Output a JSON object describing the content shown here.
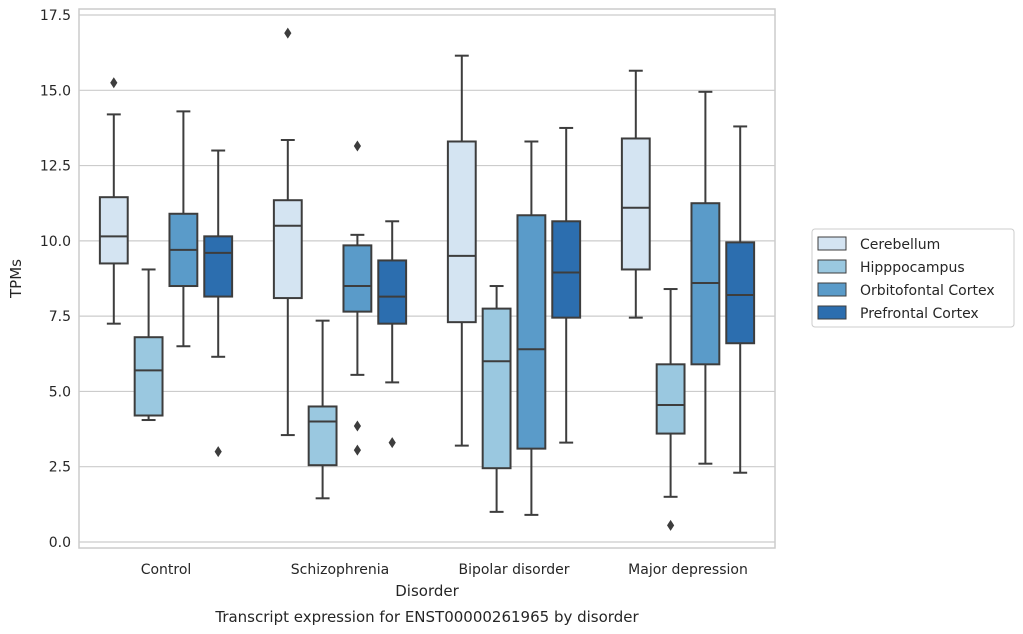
{
  "chart_data": {
    "type": "box",
    "title": "",
    "caption": "Transcript expression for ENST00000261965 by disorder",
    "xlabel": "Disorder",
    "ylabel": "TPMs",
    "ylim": [
      -0.2,
      17.7
    ],
    "yticks": [
      "0.0",
      "2.5",
      "5.0",
      "7.5",
      "10.0",
      "12.5",
      "15.0",
      "17.5"
    ],
    "grid": "horizontal",
    "legend_position": "right",
    "categories": [
      "Control",
      "Schizophrenia",
      "Bipolar disorder",
      "Major depression"
    ],
    "series": [
      {
        "name": "Cerebellum",
        "color": "#d4e4f2",
        "boxes": [
          {
            "whisker_low": 7.25,
            "q1": 9.25,
            "median": 10.15,
            "q3": 11.45,
            "whisker_high": 14.2,
            "outliers": [
              15.25
            ]
          },
          {
            "whisker_low": 3.55,
            "q1": 8.1,
            "median": 10.5,
            "q3": 11.35,
            "whisker_high": 13.35,
            "outliers": [
              16.9
            ]
          },
          {
            "whisker_low": 3.2,
            "q1": 7.3,
            "median": 9.5,
            "q3": 13.3,
            "whisker_high": 16.15,
            "outliers": []
          },
          {
            "whisker_low": 7.45,
            "q1": 9.05,
            "median": 11.1,
            "q3": 13.4,
            "whisker_high": 15.65,
            "outliers": []
          }
        ]
      },
      {
        "name": "Hipppocampus",
        "color": "#9ac8e0",
        "boxes": [
          {
            "whisker_low": 4.05,
            "q1": 4.2,
            "median": 5.7,
            "q3": 6.8,
            "whisker_high": 9.05,
            "outliers": []
          },
          {
            "whisker_low": 1.45,
            "q1": 2.55,
            "median": 4.0,
            "q3": 4.5,
            "whisker_high": 7.35,
            "outliers": []
          },
          {
            "whisker_low": 1.0,
            "q1": 2.45,
            "median": 6.0,
            "q3": 7.75,
            "whisker_high": 8.5,
            "outliers": []
          },
          {
            "whisker_low": 1.5,
            "q1": 3.6,
            "median": 4.55,
            "q3": 5.9,
            "whisker_high": 8.4,
            "outliers": [
              0.55
            ]
          }
        ]
      },
      {
        "name": "Orbitofontal Cortex",
        "color": "#5a9bc9",
        "boxes": [
          {
            "whisker_low": 6.5,
            "q1": 8.5,
            "median": 9.7,
            "q3": 10.9,
            "whisker_high": 14.3,
            "outliers": []
          },
          {
            "whisker_low": 5.55,
            "q1": 7.65,
            "median": 8.5,
            "q3": 9.85,
            "whisker_high": 10.2,
            "outliers": [
              13.15,
              3.85,
              3.05
            ]
          },
          {
            "whisker_low": 0.9,
            "q1": 3.1,
            "median": 6.4,
            "q3": 10.85,
            "whisker_high": 13.3,
            "outliers": []
          },
          {
            "whisker_low": 2.6,
            "q1": 5.9,
            "median": 8.6,
            "q3": 11.25,
            "whisker_high": 14.95,
            "outliers": []
          }
        ]
      },
      {
        "name": "Prefrontal Cortex",
        "color": "#2c6eaf",
        "boxes": [
          {
            "whisker_low": 6.15,
            "q1": 8.15,
            "median": 9.6,
            "q3": 10.15,
            "whisker_high": 13.0,
            "outliers": [
              3.0
            ]
          },
          {
            "whisker_low": 5.3,
            "q1": 7.25,
            "median": 8.15,
            "q3": 9.35,
            "whisker_high": 10.65,
            "outliers": [
              3.3
            ]
          },
          {
            "whisker_low": 3.3,
            "q1": 7.45,
            "median": 8.95,
            "q3": 10.65,
            "whisker_high": 13.75,
            "outliers": []
          },
          {
            "whisker_low": 2.3,
            "q1": 6.6,
            "median": 8.2,
            "q3": 9.95,
            "whisker_high": 13.8,
            "outliers": []
          }
        ]
      }
    ]
  }
}
